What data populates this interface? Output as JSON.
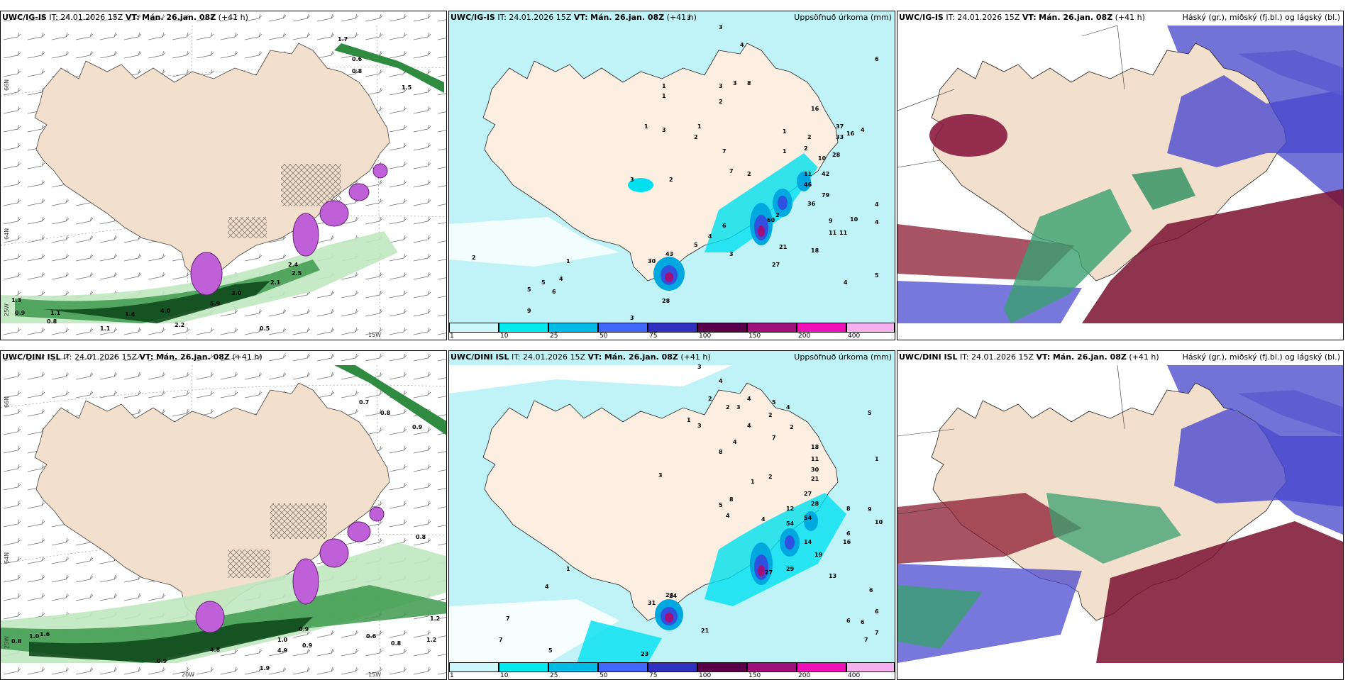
{
  "panels": {
    "ig_wind": {
      "source": "UWC/IG-IS",
      "init": "IT: 24.01.2026 15Z",
      "vt_label": "VT:",
      "vt_value": "Mán. 26.jan. 08Z",
      "lead": "(+41 h)",
      "title": ""
    },
    "ig_precip": {
      "source": "UWC/IG-IS",
      "init": "IT: 24.01.2026 15Z",
      "vt_label": "VT:",
      "vt_value": "Mán. 26.jan. 08Z",
      "lead": "(+41 h)",
      "title": "Uppsöfnuð úrkoma (mm)"
    },
    "ig_cloud": {
      "source": "UWC/IG-IS",
      "init": "IT: 24.01.2026 15Z",
      "vt_label": "VT:",
      "vt_value": "Mán. 26.jan. 08Z",
      "lead": "(+41 h)",
      "title": "Háský (gr.), miðský (fj.bl.) og lágský (bl.)"
    },
    "dini_wind": {
      "source": "UWC/DINI ISL",
      "init": "IT: 24.01.2026 15Z",
      "vt_label": "VT:",
      "vt_value": "Mán. 26.jan. 08Z",
      "lead": "(+41 h)",
      "title": ""
    },
    "dini_precip": {
      "source": "UWC/DINI ISL",
      "init": "IT: 24.01.2026 15Z",
      "vt_label": "VT:",
      "vt_value": "Mán. 26.jan. 08Z",
      "lead": "(+41 h)",
      "title": "Uppsöfnuð úrkoma (mm)"
    },
    "dini_cloud": {
      "source": "UWC/DINI ISL",
      "init": "IT: 24.01.2026 15Z",
      "vt_label": "VT:",
      "vt_value": "Mán. 26.jan. 08Z",
      "lead": "(+41 h)",
      "title": "Háský (gr.), miðský (fj.bl.) og lágský (bl.)"
    }
  },
  "axis_labels": {
    "lat_66": "66N",
    "lat_64": "64N",
    "lat_25": "25W",
    "lon_20": "20W",
    "lon_15": "15W"
  },
  "colorbar": {
    "labels": [
      "1",
      "10",
      "25",
      "50",
      "75",
      "100",
      "150",
      "200",
      "400"
    ],
    "colors": [
      "#ccf7fb",
      "#00eaf0",
      "#00bbe6",
      "#4068ff",
      "#3030c0",
      "#5a004a",
      "#a0107a",
      "#f010b8",
      "#f6b0f0"
    ]
  },
  "precip_values_ig": [
    "3",
    "3",
    "4",
    "6",
    "1",
    "1",
    "3",
    "3",
    "2",
    "8",
    "16",
    "1",
    "1",
    "3",
    "37",
    "16",
    "4",
    "2",
    "1",
    "33",
    "2",
    "7",
    "1",
    "2",
    "10",
    "28",
    "7",
    "2",
    "11",
    "42",
    "3",
    "2",
    "46",
    "36",
    "79",
    "2",
    "60",
    "9",
    "10",
    "4",
    "6",
    "4",
    "5",
    "4",
    "3",
    "11",
    "11",
    "18",
    "30",
    "43",
    "21",
    "2",
    "27",
    "5",
    "4",
    "5",
    "4",
    "6",
    "5",
    "28",
    "1",
    "3",
    "9"
  ],
  "precip_values_dini": [
    "3",
    "4",
    "2",
    "4",
    "5",
    "1",
    "2",
    "3",
    "4",
    "3",
    "4",
    "5",
    "2",
    "8",
    "2",
    "7",
    "4",
    "18",
    "11",
    "1",
    "30",
    "3",
    "2",
    "1",
    "21",
    "27",
    "28",
    "8",
    "5",
    "12",
    "54",
    "54",
    "4",
    "4",
    "24",
    "14",
    "19",
    "16",
    "6",
    "27",
    "29",
    "13",
    "8",
    "9",
    "10",
    "6",
    "6",
    "7",
    "31",
    "24",
    "21",
    "23",
    "4",
    "1",
    "7",
    "5",
    "7",
    "6",
    "6",
    "7"
  ],
  "wind_labels_ig": [
    "0.6",
    "0.8",
    "1.3",
    "0.9",
    "0.8",
    "1.1",
    "1.4",
    "1.1",
    "4.0",
    "5.9",
    "2.2",
    "0.5",
    "2.1",
    "3.0",
    "1.7",
    "2.4",
    "1.5",
    "2.5"
  ],
  "wind_labels_dini": [
    "0.7",
    "0.8",
    "0.9",
    "0.8",
    "0.6",
    "0.8",
    "1.2",
    "1.0",
    "0.9",
    "4.9",
    "0.9",
    "1.0",
    "0.8",
    "1.6",
    "1.9",
    "0.9",
    "4.8",
    "1.2"
  ]
}
